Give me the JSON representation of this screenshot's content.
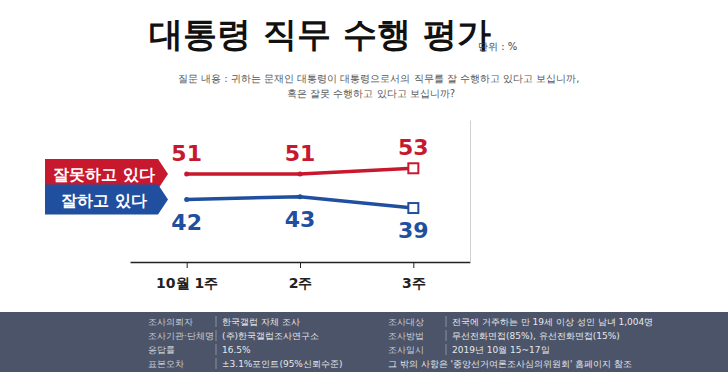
{
  "chart_data": {
    "type": "line",
    "title": "대통령 직무 수행 평가",
    "unit_label": "단위 : %",
    "subtitle": [
      "질문 내용 : 귀하는 문재인 대통령이 대통령으로서의 직무를 잘 수행하고 있다고 보십니까,",
      "혹은 잘못 수행하고 있다고 보십니까?"
    ],
    "categories": [
      "10월 1주",
      "2주",
      "3주"
    ],
    "series": [
      {
        "name": "잘못하고 있다",
        "color": "#c8182e",
        "values": [
          51,
          51,
          53
        ],
        "marker": "square"
      },
      {
        "name": "잘하고 있다",
        "color": "#1f4f9e",
        "values": [
          42,
          43,
          39
        ],
        "marker": "square"
      }
    ],
    "ylim": [
      20,
      70
    ],
    "data_labels": true,
    "tick_labels": "x",
    "grid": false
  },
  "footer": [
    [
      "조사의뢰자",
      "한국갤럽 자체 조사"
    ],
    [
      "조사기관·단체명",
      "(주)한국갤럽조사연구소"
    ],
    [
      "응답률",
      "16.5%"
    ],
    [
      "표본오차",
      "±3.1%포인트(95%신뢰수준)"
    ],
    [
      "조사대상",
      "전국에 거주하는 만 19세 이상 성인 남녀 1,004명"
    ],
    [
      "조사방법",
      "무선전화면접(85%), 유선전화면접(15%)"
    ],
    [
      "조사일시",
      "2019년 10월 15~17일"
    ],
    [
      "그 밖의 사항은 '중앙선거여론조사심의위원회' 홈페이지 참조"
    ]
  ]
}
